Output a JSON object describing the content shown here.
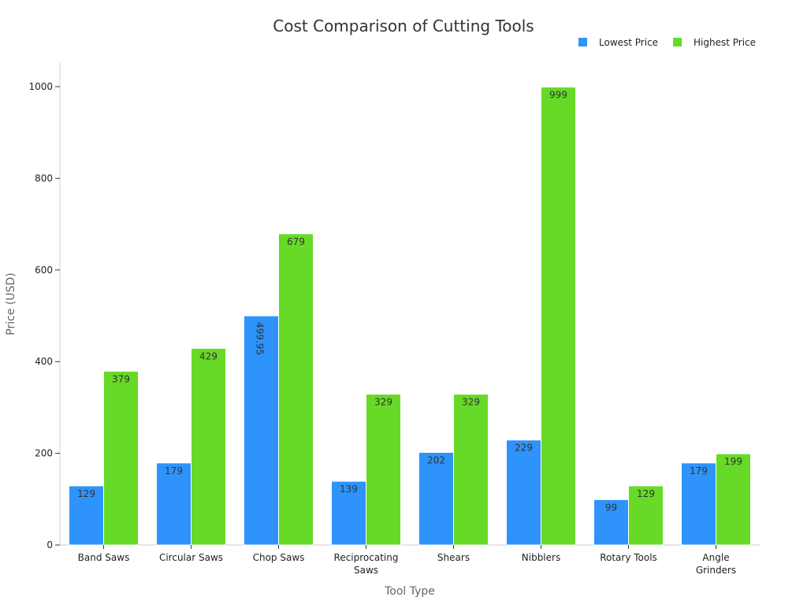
{
  "chart_data": {
    "type": "bar",
    "title": "Cost Comparison of Cutting Tools",
    "xlabel": "Tool Type",
    "ylabel": "Price (USD)",
    "categories": [
      [
        "Band Saws"
      ],
      [
        "Circular Saws"
      ],
      [
        "Chop Saws"
      ],
      [
        "Reciprocating",
        "Saws"
      ],
      [
        "Shears"
      ],
      [
        "Nibblers"
      ],
      [
        "Rotary Tools"
      ],
      [
        "Angle",
        "Grinders"
      ]
    ],
    "series": [
      {
        "name": "Lowest Price",
        "color": "#2e93fa",
        "values": [
          129,
          179,
          499.95,
          139,
          202,
          229,
          99,
          179
        ],
        "labels": [
          "129",
          "179",
          "499.95",
          "139",
          "202",
          "229",
          "99",
          "179"
        ]
      },
      {
        "name": "Highest Price",
        "color": "#66da26",
        "values": [
          379,
          429,
          679,
          329,
          329,
          999,
          129,
          199
        ],
        "labels": [
          "379",
          "429",
          "679",
          "329",
          "329",
          "999",
          "129",
          "199"
        ]
      }
    ],
    "ylim": [
      0,
      1050
    ],
    "yticks": [
      0,
      200,
      400,
      600,
      800,
      1000
    ],
    "grid": false,
    "legend_position": "top-right"
  }
}
